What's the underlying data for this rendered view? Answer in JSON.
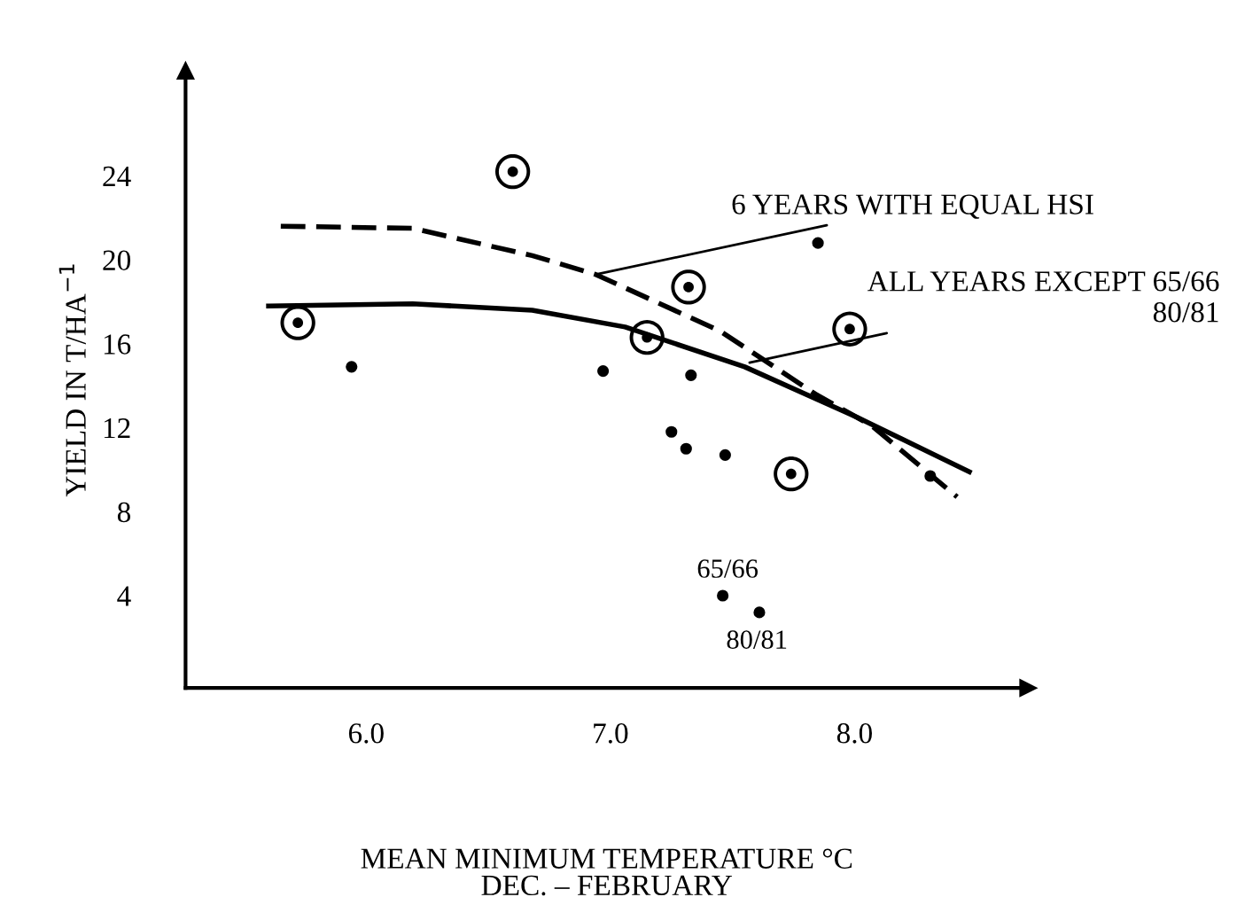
{
  "chart_data": {
    "type": "scatter",
    "xlabel": "MEAN MINIMUM TEMPERATURE °C\nDEC. – FEBRUARY",
    "ylabel": "YIELD IN T/HA$^{−1}$",
    "xlim": [
      5.26,
      8.71
    ],
    "ylim": [
      -0.4,
      29
    ],
    "xticks": [
      {
        "value": 6,
        "label": "6.0"
      },
      {
        "value": 7,
        "label": "7.0"
      },
      {
        "value": 8,
        "label": "8.0"
      }
    ],
    "yticks": [
      4,
      8,
      12,
      16,
      20,
      24
    ],
    "grid": false,
    "series": [
      {
        "marker": "circle",
        "color": "#000000",
        "x": [
          5.94,
          6.97,
          7.33,
          7.25,
          7.31,
          7.47,
          7.85,
          8.31,
          7.46,
          7.61
        ],
        "values": [
          14.9,
          14.7,
          14.5,
          11.8,
          11.0,
          10.7,
          20.8,
          9.7,
          4.0,
          3.2
        ]
      },
      {
        "marker": "circle",
        "color": "#000000",
        "x": [
          5.72,
          6.6,
          7.15,
          7.32,
          7.74,
          7.98
        ],
        "values": [
          17.0,
          24.2,
          16.3,
          18.7,
          9.8,
          16.7
        ]
      },
      {
        "type": "line",
        "color": "#000000",
        "line_style": "dashed",
        "marker": "none",
        "x": [
          5.65,
          6.19,
          6.68,
          6.94,
          7.45,
          7.84,
          8.07,
          8.42
        ],
        "values": [
          21.6,
          21.5,
          20.2,
          19.3,
          16.6,
          13.6,
          12.1,
          8.7
        ]
      },
      {
        "type": "line",
        "color": "#000000",
        "line_style": "solid",
        "marker": "none",
        "x": [
          5.6,
          6.19,
          6.68,
          7.06,
          7.55,
          8.01,
          8.47
        ],
        "values": [
          17.8,
          17.9,
          17.6,
          16.8,
          14.9,
          12.5,
          9.9
        ]
      }
    ],
    "annotations": [
      {
        "text": "6 YEARS WITH EQUAL HSI",
        "x": 6.94,
        "y": 19.3
      },
      {
        "text": "ALL YEARS EXCEPT 65/66\n80/81",
        "x": 7.57,
        "y": 15.1
      },
      {
        "text": "65/66",
        "x": 7.46,
        "y": 4.0
      },
      {
        "text": "80/81",
        "x": 7.61,
        "y": 3.2
      }
    ]
  }
}
